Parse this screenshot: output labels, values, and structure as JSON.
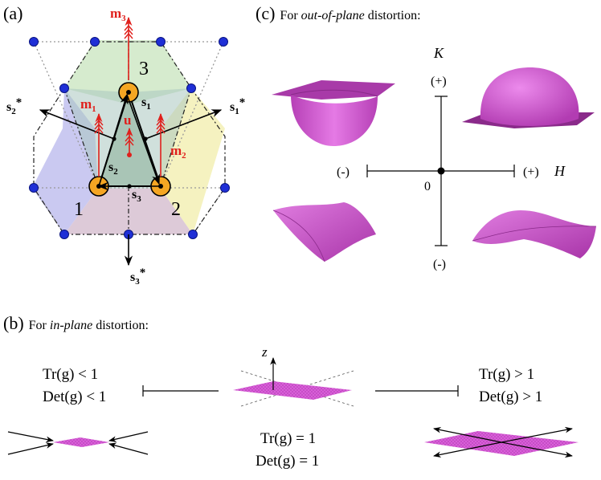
{
  "panel_a": {
    "label": "(a)",
    "sites": [
      "1",
      "2",
      "3"
    ],
    "vectors": {
      "s1": {
        "base": "s",
        "sub": "1"
      },
      "s2": {
        "base": "s",
        "sub": "2"
      },
      "s3": {
        "base": "s",
        "sub": "3"
      },
      "s1_star": {
        "base": "s",
        "sub": "1",
        "sup": "*"
      },
      "s2_star": {
        "base": "s",
        "sub": "2",
        "sup": "*"
      },
      "s3_star": {
        "base": "s",
        "sub": "3",
        "sup": "*"
      },
      "m1": {
        "base": "m",
        "sub": "1"
      },
      "m2": {
        "base": "m",
        "sub": "2"
      },
      "m3": {
        "base": "m",
        "sub": "3"
      },
      "u": {
        "base": "u"
      }
    },
    "colors": {
      "orbital": "#f5a623",
      "node": "#1f2fd6",
      "arrow_red": "#e0201c",
      "region_green": "#cfe8c6",
      "region_blue": "#c4c3f0",
      "region_yellow": "#f4f1b9",
      "region_mauve": "#d9c4d4",
      "region_teal": "#a9c7bf"
    }
  },
  "panel_b": {
    "label": "(b)",
    "title_prefix": "For ",
    "title_em": "in-plane",
    "title_suffix": " distortion:",
    "axis_z": "z",
    "left": {
      "line1": "Tr(g) < 1",
      "line2": "Det(g) < 1"
    },
    "center": {
      "line1": "Tr(g) = 1",
      "line2": "Det(g) = 1"
    },
    "right": {
      "line1": "Tr(g) > 1",
      "line2": "Det(g) > 1"
    },
    "sheet_color": "#d95fd9"
  },
  "panel_c": {
    "label": "(c)",
    "title_prefix": "For ",
    "title_em": "out-of-plane",
    "title_suffix": " distortion:",
    "axis_k": "K",
    "axis_h": "H",
    "plus": "(+)",
    "minus": "(-)",
    "origin": "0",
    "surface_color": "#d957d9"
  }
}
